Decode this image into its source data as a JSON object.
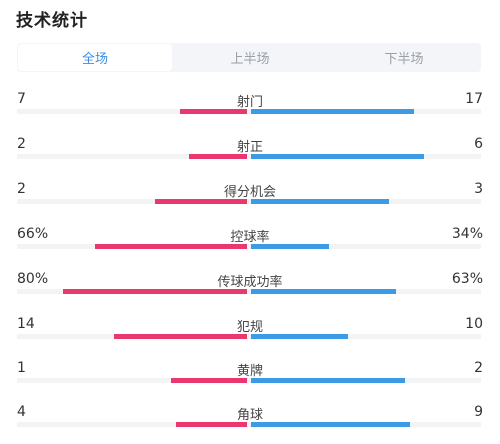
{
  "header": {
    "title": "技术统计"
  },
  "tabs": [
    {
      "label": "全场",
      "active": true
    },
    {
      "label": "上半场",
      "active": false
    },
    {
      "label": "下半场",
      "active": false
    }
  ],
  "colors": {
    "home": "#e8386d",
    "away": "#3b9be7",
    "active_tab": "#3a8ee6"
  },
  "stats": [
    {
      "label": "射门",
      "home": "7",
      "away": "17",
      "home_bar": 0.29,
      "away_bar": 0.71
    },
    {
      "label": "射正",
      "home": "2",
      "away": "6",
      "home_bar": 0.25,
      "away_bar": 0.75
    },
    {
      "label": "得分机会",
      "home": "2",
      "away": "3",
      "home_bar": 0.4,
      "away_bar": 0.6
    },
    {
      "label": "控球率",
      "home": "66%",
      "away": "34%",
      "home_bar": 0.66,
      "away_bar": 0.34
    },
    {
      "label": "传球成功率",
      "home": "80%",
      "away": "63%",
      "home_bar": 0.8,
      "away_bar": 0.63
    },
    {
      "label": "犯规",
      "home": "14",
      "away": "10",
      "home_bar": 0.58,
      "away_bar": 0.42
    },
    {
      "label": "黄牌",
      "home": "1",
      "away": "2",
      "home_bar": 0.33,
      "away_bar": 0.67
    },
    {
      "label": "角球",
      "home": "4",
      "away": "9",
      "home_bar": 0.31,
      "away_bar": 0.69
    }
  ]
}
